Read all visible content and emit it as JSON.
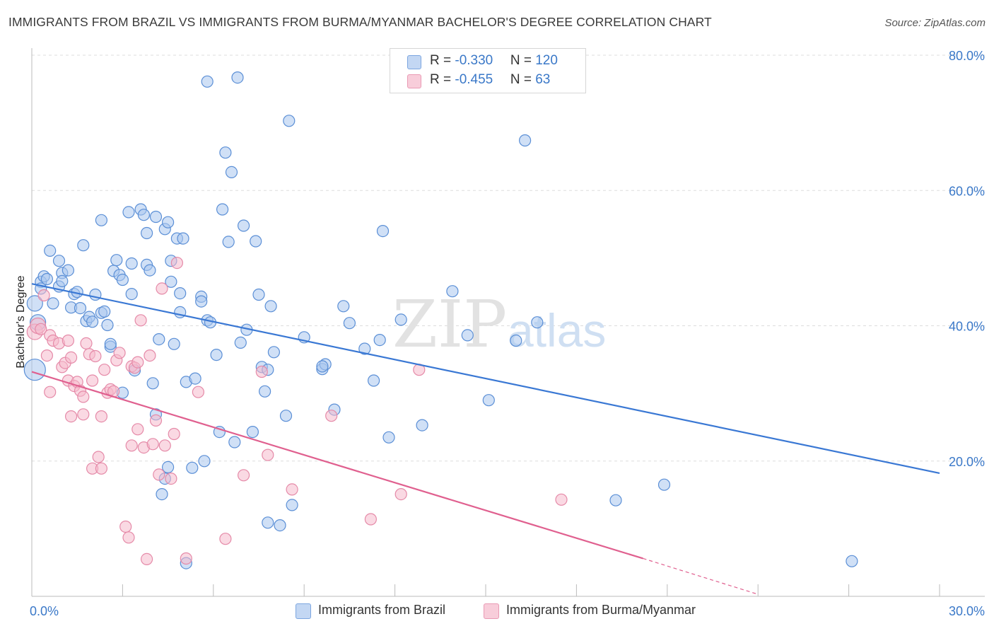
{
  "header": {
    "title": "IMMIGRANTS FROM BRAZIL VS IMMIGRANTS FROM BURMA/MYANMAR BACHELOR'S DEGREE CORRELATION CHART",
    "source": "Source: ZipAtlas.com"
  },
  "watermark": {
    "zip": "ZIP",
    "atlas": "atlas"
  },
  "legend": {
    "brazil": {
      "r_label": "R = ",
      "r_value": "-0.330",
      "n_label": "N = ",
      "n_value": "120"
    },
    "burma": {
      "r_label": "R = ",
      "r_value": "-0.455",
      "n_label": "N = ",
      "n_value": "63"
    }
  },
  "colors": {
    "brazil_fill": "#a9c6ee",
    "brazil_stroke": "#5b8fd6",
    "brazil_line": "#3a78d4",
    "burma_fill": "#f6b9cc",
    "burma_stroke": "#e58aa8",
    "burma_line": "#e0608f",
    "grid": "#dddddd",
    "tick_text": "#3a78c8"
  },
  "chart_data": {
    "type": "scatter",
    "title": "IMMIGRANTS FROM BRAZIL VS IMMIGRANTS FROM BURMA/MYANMAR BACHELOR'S DEGREE CORRELATION CHART",
    "xlabel": "",
    "ylabel": "Bachelor's Degree",
    "xlim": [
      0,
      30
    ],
    "ylim": [
      0,
      80
    ],
    "x_tick_labels": [
      "0.0%",
      "30.0%"
    ],
    "y_tick_labels": [
      "20.0%",
      "40.0%",
      "60.0%",
      "80.0%"
    ],
    "y_ticks": [
      20,
      40,
      60,
      80
    ],
    "grid": true,
    "legend_position": "top-center",
    "series": [
      {
        "name": "Immigrants from Brazil",
        "r": -0.33,
        "n": 120,
        "trend": {
          "x": [
            0,
            30
          ],
          "y": [
            46.2,
            18.2
          ]
        },
        "points": [
          [
            0.1,
            33.5,
            3
          ],
          [
            0.1,
            43.3,
            2
          ],
          [
            0.2,
            40.5,
            2
          ],
          [
            0.3,
            46.5,
            1
          ],
          [
            0.3,
            45.5,
            1
          ],
          [
            0.4,
            47.3,
            1
          ],
          [
            0.5,
            46.9,
            1
          ],
          [
            0.6,
            51.1,
            1
          ],
          [
            0.7,
            43.3,
            1
          ],
          [
            0.9,
            49.6,
            1
          ],
          [
            0.9,
            45.8,
            1
          ],
          [
            1.0,
            47.8,
            1
          ],
          [
            1.0,
            46.6,
            1
          ],
          [
            1.2,
            48.2,
            1
          ],
          [
            1.3,
            42.7,
            1
          ],
          [
            1.4,
            44.7,
            1
          ],
          [
            1.5,
            45.0,
            1
          ],
          [
            1.6,
            42.6,
            1
          ],
          [
            1.7,
            51.9,
            1
          ],
          [
            1.8,
            40.7,
            1
          ],
          [
            1.9,
            41.3,
            1
          ],
          [
            2.0,
            40.6,
            1
          ],
          [
            2.1,
            44.6,
            1
          ],
          [
            2.3,
            41.9,
            1
          ],
          [
            2.3,
            55.6,
            1
          ],
          [
            2.4,
            42.1,
            1
          ],
          [
            2.5,
            40.1,
            1
          ],
          [
            2.6,
            36.9,
            1
          ],
          [
            2.6,
            37.3,
            1
          ],
          [
            2.7,
            48.1,
            1
          ],
          [
            2.8,
            49.7,
            1
          ],
          [
            2.9,
            47.5,
            1
          ],
          [
            3.0,
            46.8,
            1
          ],
          [
            3.0,
            30.1,
            1
          ],
          [
            3.2,
            56.8,
            1
          ],
          [
            3.3,
            49.2,
            1
          ],
          [
            3.3,
            44.7,
            1
          ],
          [
            3.4,
            33.4,
            1
          ],
          [
            3.6,
            57.2,
            1
          ],
          [
            3.7,
            56.4,
            1
          ],
          [
            3.8,
            49.0,
            1
          ],
          [
            3.8,
            53.7,
            1
          ],
          [
            3.9,
            48.2,
            1
          ],
          [
            4.0,
            31.5,
            1
          ],
          [
            4.1,
            56.1,
            1
          ],
          [
            4.1,
            26.9,
            1
          ],
          [
            4.2,
            38.0,
            1
          ],
          [
            4.3,
            15.1,
            1
          ],
          [
            4.4,
            17.4,
            1
          ],
          [
            4.5,
            19.1,
            1
          ],
          [
            4.4,
            54.3,
            1
          ],
          [
            4.5,
            55.3,
            1
          ],
          [
            4.6,
            49.6,
            1
          ],
          [
            4.6,
            46.5,
            1
          ],
          [
            4.7,
            37.3,
            1
          ],
          [
            4.8,
            52.9,
            1
          ],
          [
            4.9,
            44.8,
            1
          ],
          [
            4.9,
            42.0,
            1
          ],
          [
            5.0,
            52.9,
            1
          ],
          [
            5.1,
            31.7,
            1
          ],
          [
            5.1,
            4.9,
            1
          ],
          [
            5.3,
            19.0,
            1
          ],
          [
            5.4,
            32.2,
            1
          ],
          [
            5.6,
            44.3,
            1
          ],
          [
            5.6,
            43.6,
            1
          ],
          [
            5.7,
            20.0,
            1
          ],
          [
            5.8,
            40.8,
            1
          ],
          [
            5.8,
            76.1,
            1
          ],
          [
            5.9,
            40.5,
            1
          ],
          [
            6.1,
            35.7,
            1
          ],
          [
            6.2,
            24.3,
            1
          ],
          [
            6.3,
            57.2,
            1
          ],
          [
            6.4,
            65.6,
            1
          ],
          [
            6.5,
            52.4,
            1
          ],
          [
            6.6,
            62.7,
            1
          ],
          [
            6.7,
            22.8,
            1
          ],
          [
            6.8,
            76.7,
            1
          ],
          [
            6.9,
            37.5,
            1
          ],
          [
            7.0,
            54.8,
            1
          ],
          [
            7.1,
            39.4,
            1
          ],
          [
            7.3,
            24.3,
            1
          ],
          [
            7.4,
            52.5,
            1
          ],
          [
            7.5,
            44.6,
            1
          ],
          [
            7.6,
            33.9,
            1
          ],
          [
            7.7,
            30.3,
            1
          ],
          [
            7.8,
            33.5,
            1
          ],
          [
            7.9,
            42.9,
            1
          ],
          [
            8.0,
            36.1,
            1
          ],
          [
            7.8,
            10.9,
            1
          ],
          [
            8.2,
            10.5,
            1
          ],
          [
            8.4,
            26.7,
            1
          ],
          [
            8.5,
            70.3,
            1
          ],
          [
            8.6,
            13.5,
            1
          ],
          [
            9.0,
            38.3,
            1
          ],
          [
            9.6,
            33.6,
            1
          ],
          [
            9.7,
            34.3,
            1
          ],
          [
            9.6,
            34.0,
            1
          ],
          [
            10.0,
            27.6,
            1
          ],
          [
            10.3,
            42.9,
            1
          ],
          [
            10.5,
            40.4,
            1
          ],
          [
            11.0,
            36.6,
            1
          ],
          [
            11.3,
            31.9,
            1
          ],
          [
            11.5,
            37.9,
            1
          ],
          [
            11.6,
            54.0,
            1
          ],
          [
            11.8,
            23.5,
            1
          ],
          [
            12.2,
            40.9,
            1
          ],
          [
            12.9,
            25.3,
            1
          ],
          [
            13.9,
            45.1,
            1
          ],
          [
            14.4,
            38.6,
            1
          ],
          [
            15.1,
            29.0,
            1
          ],
          [
            16.0,
            37.8,
            1
          ],
          [
            16.3,
            67.4,
            1
          ],
          [
            16.7,
            40.5,
            1
          ],
          [
            19.3,
            14.2,
            1
          ],
          [
            20.9,
            16.5,
            1
          ],
          [
            27.1,
            5.2,
            1
          ]
        ]
      },
      {
        "name": "Immigrants from Burma/Myanmar",
        "r": -0.455,
        "n": 63,
        "trend": {
          "x": [
            0,
            20.2
          ],
          "y": [
            33.2,
            5.6
          ]
        },
        "trend_extension": {
          "x": [
            20.2,
            24.0
          ],
          "y": [
            5.6,
            0.3
          ]
        },
        "points": [
          [
            0.1,
            39.1,
            2
          ],
          [
            0.2,
            40.0,
            2
          ],
          [
            0.3,
            39.5,
            1
          ],
          [
            0.4,
            44.5,
            1
          ],
          [
            0.5,
            35.6,
            1
          ],
          [
            0.6,
            30.2,
            1
          ],
          [
            0.6,
            38.6,
            1
          ],
          [
            0.7,
            37.8,
            1
          ],
          [
            0.9,
            37.4,
            1
          ],
          [
            1.0,
            33.9,
            1
          ],
          [
            1.1,
            34.5,
            1
          ],
          [
            1.2,
            31.9,
            1
          ],
          [
            1.2,
            37.8,
            1
          ],
          [
            1.3,
            26.6,
            1
          ],
          [
            1.3,
            35.3,
            1
          ],
          [
            1.4,
            31.1,
            1
          ],
          [
            1.5,
            31.7,
            1
          ],
          [
            1.6,
            30.4,
            1
          ],
          [
            1.7,
            29.5,
            1
          ],
          [
            1.7,
            26.9,
            1
          ],
          [
            1.8,
            37.4,
            1
          ],
          [
            1.9,
            35.8,
            1
          ],
          [
            2.0,
            31.9,
            1
          ],
          [
            2.1,
            35.5,
            1
          ],
          [
            2.2,
            20.6,
            1
          ],
          [
            2.3,
            26.6,
            1
          ],
          [
            2.4,
            33.5,
            1
          ],
          [
            2.5,
            30.1,
            1
          ],
          [
            2.6,
            30.6,
            1
          ],
          [
            2.7,
            30.3,
            1
          ],
          [
            2.0,
            18.9,
            1
          ],
          [
            2.3,
            18.9,
            1
          ],
          [
            2.8,
            34.9,
            1
          ],
          [
            2.9,
            36.0,
            1
          ],
          [
            3.1,
            10.3,
            1
          ],
          [
            3.2,
            8.7,
            1
          ],
          [
            3.3,
            22.3,
            1
          ],
          [
            3.3,
            34.0,
            1
          ],
          [
            3.4,
            33.8,
            1
          ],
          [
            3.5,
            24.7,
            1
          ],
          [
            3.5,
            34.6,
            1
          ],
          [
            3.6,
            40.8,
            1
          ],
          [
            3.7,
            22.0,
            1
          ],
          [
            3.8,
            5.5,
            1
          ],
          [
            3.9,
            35.6,
            1
          ],
          [
            4.0,
            22.5,
            1
          ],
          [
            4.1,
            26.0,
            1
          ],
          [
            4.2,
            18.0,
            1
          ],
          [
            4.3,
            45.5,
            1
          ],
          [
            4.4,
            22.3,
            1
          ],
          [
            4.6,
            17.4,
            1
          ],
          [
            4.7,
            24.0,
            1
          ],
          [
            4.8,
            49.3,
            1
          ],
          [
            5.1,
            5.6,
            1
          ],
          [
            5.5,
            30.2,
            1
          ],
          [
            6.4,
            8.5,
            1
          ],
          [
            7.0,
            17.9,
            1
          ],
          [
            7.6,
            33.2,
            1
          ],
          [
            7.8,
            20.9,
            1
          ],
          [
            8.6,
            15.8,
            1
          ],
          [
            9.9,
            26.7,
            1
          ],
          [
            11.2,
            11.4,
            1
          ],
          [
            12.2,
            15.1,
            1
          ],
          [
            12.8,
            33.5,
            1
          ],
          [
            17.5,
            14.3,
            1
          ]
        ]
      }
    ]
  },
  "bottom_legend": {
    "brazil": "Immigrants from Brazil",
    "burma": "Immigrants from Burma/Myanmar"
  }
}
